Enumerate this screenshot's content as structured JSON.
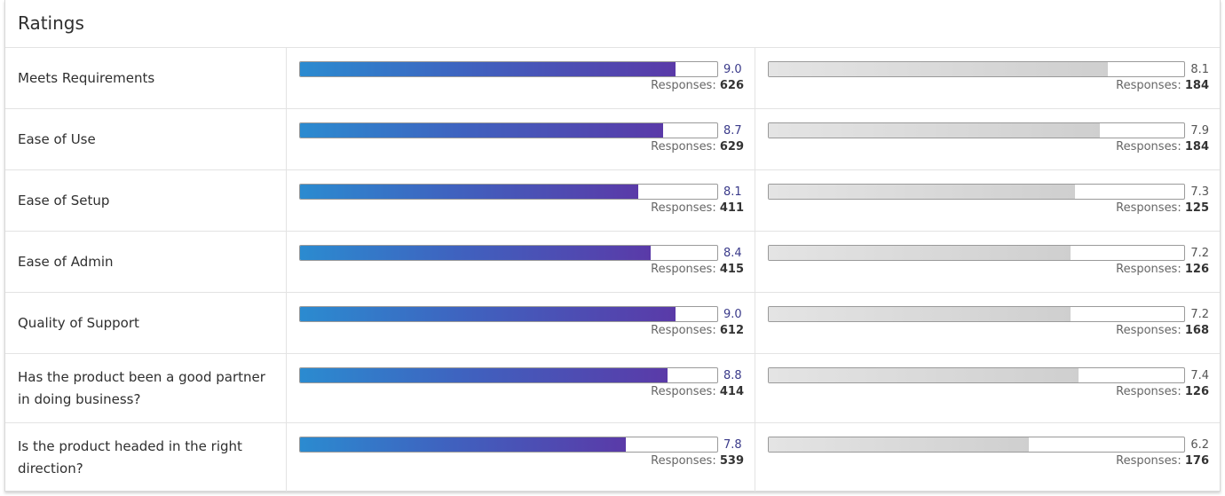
{
  "title": "Ratings",
  "responses_label": "Responses:",
  "rows": [
    {
      "label": "Meets Requirements",
      "primary": {
        "score": "9.0",
        "value": 9.0,
        "responses": "626"
      },
      "compare": {
        "score": "8.1",
        "value": 8.1,
        "responses": "184"
      }
    },
    {
      "label": "Ease of Use",
      "primary": {
        "score": "8.7",
        "value": 8.7,
        "responses": "629"
      },
      "compare": {
        "score": "7.9",
        "value": 7.9,
        "responses": "184"
      }
    },
    {
      "label": "Ease of Setup",
      "primary": {
        "score": "8.1",
        "value": 8.1,
        "responses": "411"
      },
      "compare": {
        "score": "7.3",
        "value": 7.3,
        "responses": "125"
      }
    },
    {
      "label": "Ease of Admin",
      "primary": {
        "score": "8.4",
        "value": 8.4,
        "responses": "415"
      },
      "compare": {
        "score": "7.2",
        "value": 7.2,
        "responses": "126"
      }
    },
    {
      "label": "Quality of Support",
      "primary": {
        "score": "9.0",
        "value": 9.0,
        "responses": "612"
      },
      "compare": {
        "score": "7.2",
        "value": 7.2,
        "responses": "168"
      }
    },
    {
      "label": "Has the product been a good partner in doing business?",
      "primary": {
        "score": "8.8",
        "value": 8.8,
        "responses": "414"
      },
      "compare": {
        "score": "7.4",
        "value": 7.4,
        "responses": "126"
      }
    },
    {
      "label": "Is the product headed in the right direction?",
      "primary": {
        "score": "7.8",
        "value": 7.8,
        "responses": "539"
      },
      "compare": {
        "score": "6.2",
        "value": 6.2,
        "responses": "176"
      }
    }
  ],
  "scale_max": 10,
  "colors": {
    "primary_start": "#2b8bd0",
    "primary_end": "#5a3aa8",
    "compare": "#cfcfcf"
  }
}
